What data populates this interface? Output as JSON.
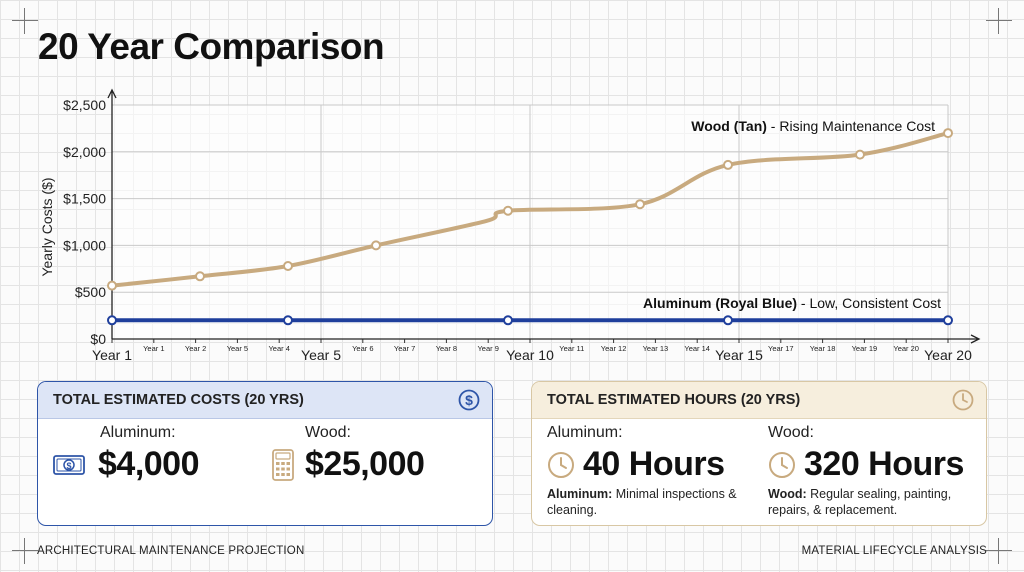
{
  "title": "20 Year Comparison",
  "chart_data": {
    "type": "line",
    "ylabel": "Yearly Costs ($)",
    "xlabel": "",
    "ylim": [
      0,
      2500
    ],
    "yticks": [
      "$0",
      "$500",
      "$1,000",
      "$1,500",
      "$2,000",
      "$2,500"
    ],
    "ytick_values": [
      0,
      500,
      1000,
      1500,
      2000,
      2500
    ],
    "x_tick_labels": [
      "Year 1",
      "Year 1",
      "Year 2",
      "Year 5",
      "Year 4",
      "Year 5",
      "Year 6",
      "Year 7",
      "Year 8",
      "Year 9",
      "Year 10",
      "Year 11",
      "Year 12",
      "Year 13",
      "Year 14",
      "Year 15",
      "Year 17",
      "Year 18",
      "Year 19",
      "Year 20",
      "Year 20"
    ],
    "major_ticks": [
      0,
      5,
      10,
      15,
      20
    ],
    "x_range": [
      1,
      20
    ],
    "grid": true,
    "series": [
      {
        "name": "Wood (Tan) - Rising Maintenance Cost",
        "color": "#c8aa7f",
        "x": [
          1,
          3,
          5,
          7,
          9.5,
          10,
          13,
          15,
          18,
          20
        ],
        "y": [
          570,
          670,
          780,
          1000,
          1260,
          1370,
          1440,
          1860,
          1970,
          2200
        ],
        "markers": [
          1,
          3,
          5,
          7,
          10,
          13,
          15,
          18,
          20
        ]
      },
      {
        "name": "Aluminum (Royal Blue) - Low, Consistent Cost",
        "color": "#1f3f9c",
        "x": [
          1,
          20
        ],
        "y": [
          200,
          200
        ],
        "markers": [
          1,
          5,
          10,
          15,
          20
        ]
      }
    ],
    "annotations": {
      "wood_bold": "Wood (Tan)",
      "wood_rest": " - Rising Maintenance Cost",
      "alu_bold": "Aluminum (Royal Blue)",
      "alu_rest": " - Low, Consistent Cost"
    }
  },
  "costs_card": {
    "header": "TOTAL ESTIMATED COSTS (20 YRS)",
    "header_icon": "dollar-circle-icon",
    "aluminum_label": "Aluminum:",
    "aluminum_value": "$4,000",
    "aluminum_icon": "banknote-icon",
    "wood_label": "Wood:",
    "wood_value": "$25,000",
    "wood_icon": "calculator-icon",
    "accent": "#2e55a8"
  },
  "hours_card": {
    "header": "TOTAL ESTIMATED HOURS (20 YRS)",
    "header_icon": "clock-icon",
    "aluminum_label": "Aluminum:",
    "aluminum_value": "40 Hours",
    "aluminum_note_bold": "Aluminum:",
    "aluminum_note": " Minimal inspections & cleaning.",
    "wood_label": "Wood:",
    "wood_value": "320 Hours",
    "wood_note_bold": "Wood:",
    "wood_note": " Regular sealing, painting, repairs, & replacement.",
    "accent": "#c8aa7f"
  },
  "footer": {
    "left": "ARCHITECTURAL MAINTENANCE PROJECTION",
    "right": "MATERIAL LIFECYCLE ANALYSIS"
  }
}
